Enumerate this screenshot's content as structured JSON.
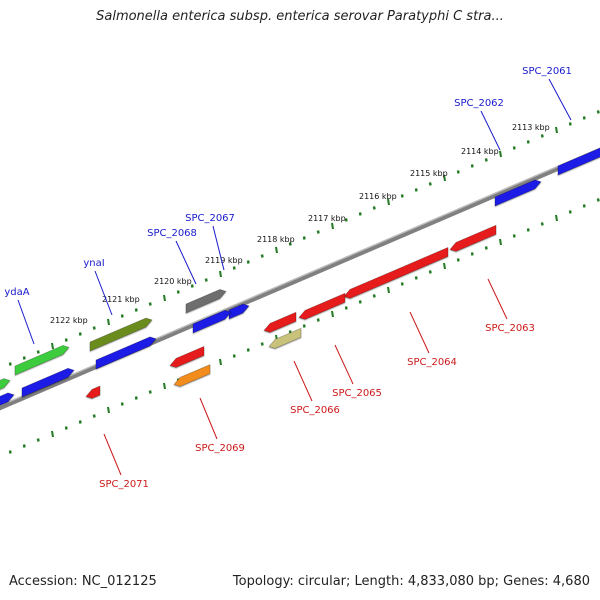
{
  "title": "Salmonella enterica subsp. enterica serovar Paratyphi C stra...",
  "accession": "Accession: NC_012125",
  "summary": "Topology: circular; Length: 4,833,080 bp; Genes: 4,680",
  "colors": {
    "backbone": "#7a7a7a",
    "tick": "#1f7a1f",
    "forward_label": "#1a1acc",
    "reverse_label": "#cc1a1a",
    "blue": "#1a1ae6",
    "red": "#e61a1a",
    "green": "#3ccc3c",
    "olive": "#6b8c1f",
    "gray": "#6e6e6e",
    "orange": "#f28c1a",
    "khaki": "#c8c27a"
  },
  "scale_labels": [
    "2113 kbp",
    "2114 kbp",
    "2115 kbp",
    "2116 kbp",
    "2117 kbp",
    "2118 kbp",
    "2119 kbp",
    "2120 kbp",
    "2121 kbp",
    "2122 kbp"
  ],
  "forward_labels": [
    "SPC_2061",
    "SPC_2062",
    "SPC_2067",
    "SPC_2068",
    "ynaI",
    "ydaA"
  ],
  "reverse_labels": [
    "SPC_2063",
    "SPC_2064",
    "SPC_2065",
    "SPC_2066",
    "SPC_2069",
    "SPC_2071"
  ]
}
